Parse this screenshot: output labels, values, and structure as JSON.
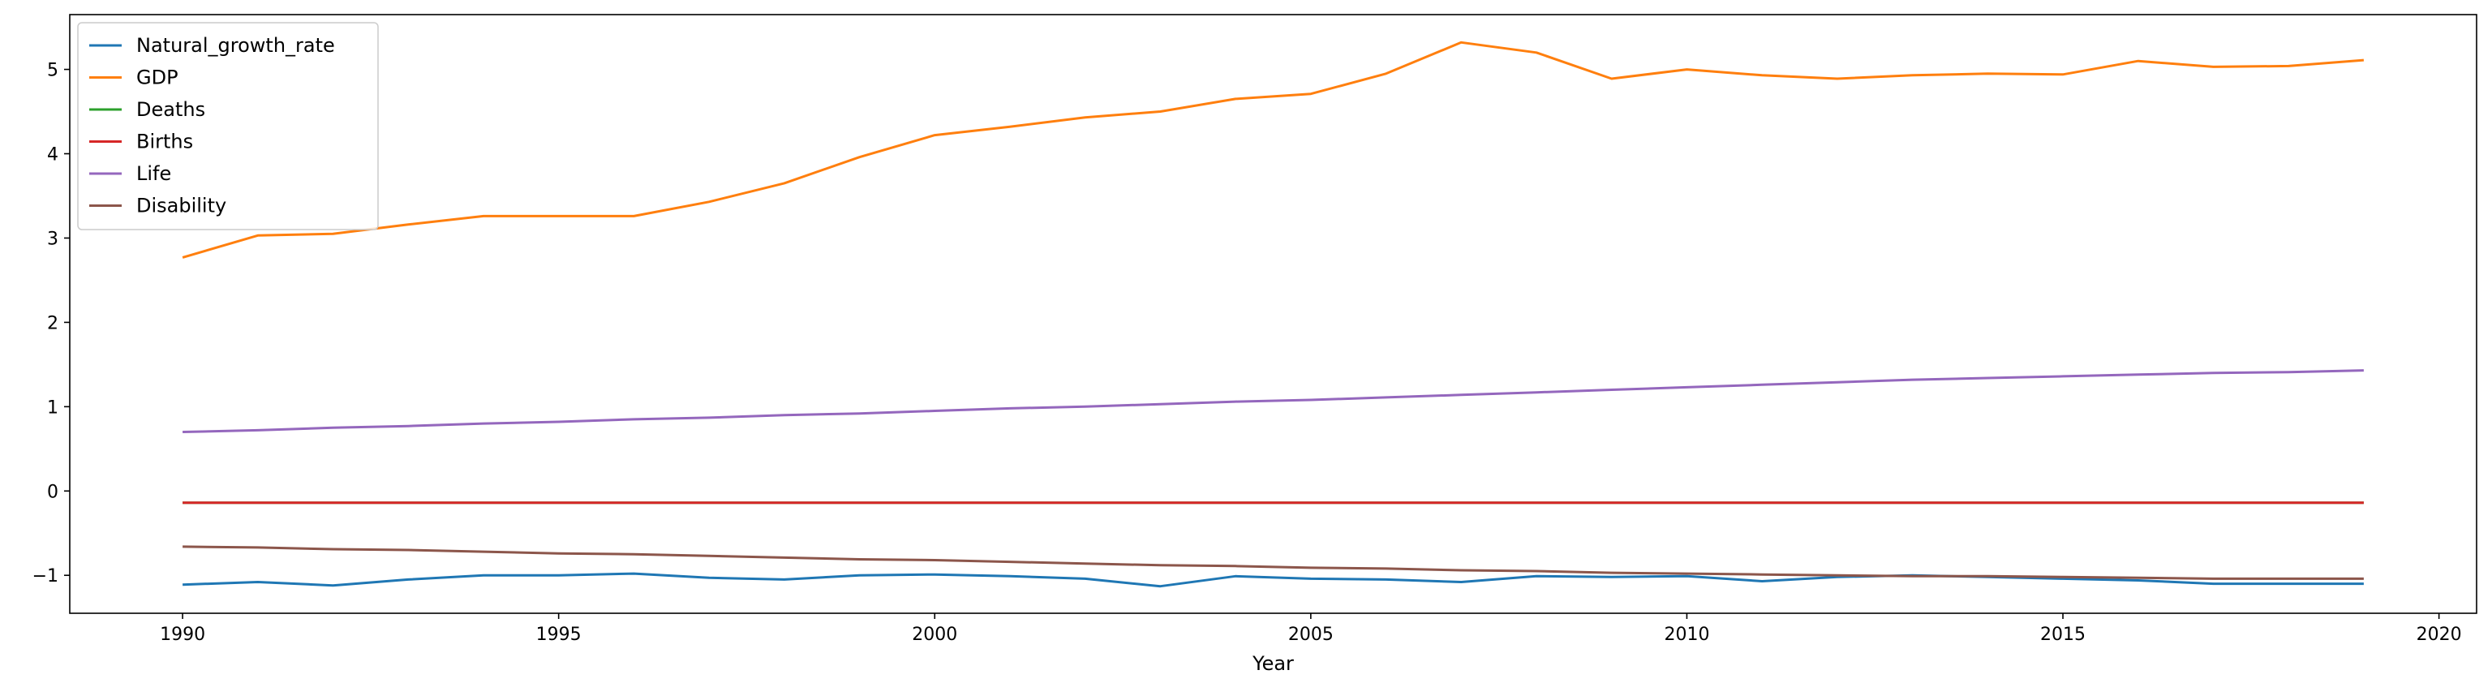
{
  "chart_data": {
    "type": "line",
    "title": "",
    "xlabel": "Year",
    "ylabel": "",
    "xlim": [
      1988.5,
      2020.5
    ],
    "ylim": [
      -1.45,
      5.65
    ],
    "xticks": [
      1990,
      1995,
      2000,
      2005,
      2010,
      2015,
      2020
    ],
    "yticks": [
      -1,
      0,
      1,
      2,
      3,
      4,
      5
    ],
    "ytick_labels": [
      "−1",
      "0",
      "1",
      "2",
      "3",
      "4",
      "5"
    ],
    "grid": false,
    "legend_position": "top-left",
    "x": [
      1990,
      1991,
      1992,
      1993,
      1994,
      1995,
      1996,
      1997,
      1998,
      1999,
      2000,
      2001,
      2002,
      2003,
      2004,
      2005,
      2006,
      2007,
      2008,
      2009,
      2010,
      2011,
      2012,
      2013,
      2014,
      2015,
      2016,
      2017,
      2018,
      2019
    ],
    "series": [
      {
        "name": "Natural_growth_rate",
        "color": "#1f77b4",
        "values": [
          -1.11,
          -1.08,
          -1.12,
          -1.05,
          -1.0,
          -1.0,
          -0.98,
          -1.03,
          -1.05,
          -1.0,
          -0.99,
          -1.01,
          -1.04,
          -1.13,
          -1.01,
          -1.04,
          -1.05,
          -1.08,
          -1.01,
          -1.02,
          -1.01,
          -1.07,
          -1.02,
          -1.0,
          -1.02,
          -1.04,
          -1.06,
          -1.1,
          -1.1,
          -1.1
        ]
      },
      {
        "name": "GDP",
        "color": "#ff7f0e",
        "values": [
          2.77,
          3.03,
          3.05,
          3.16,
          3.26,
          3.26,
          3.26,
          3.43,
          3.65,
          3.96,
          4.22,
          4.32,
          4.43,
          4.5,
          4.65,
          4.71,
          4.95,
          5.32,
          5.2,
          4.89,
          5.0,
          4.93,
          4.89,
          4.93,
          4.95,
          4.94,
          5.1,
          5.03,
          5.04,
          5.11
        ]
      },
      {
        "name": "Deaths",
        "color": "#2ca02c",
        "values": [
          -0.14,
          -0.14,
          -0.14,
          -0.14,
          -0.14,
          -0.14,
          -0.14,
          -0.14,
          -0.14,
          -0.14,
          -0.14,
          -0.14,
          -0.14,
          -0.14,
          -0.14,
          -0.14,
          -0.14,
          -0.14,
          -0.14,
          -0.14,
          -0.14,
          -0.14,
          -0.14,
          -0.14,
          -0.14,
          -0.14,
          -0.14,
          -0.14,
          -0.14,
          -0.14
        ]
      },
      {
        "name": "Births",
        "color": "#d62728",
        "values": [
          -0.14,
          -0.14,
          -0.14,
          -0.14,
          -0.14,
          -0.14,
          -0.14,
          -0.14,
          -0.14,
          -0.14,
          -0.14,
          -0.14,
          -0.14,
          -0.14,
          -0.14,
          -0.14,
          -0.14,
          -0.14,
          -0.14,
          -0.14,
          -0.14,
          -0.14,
          -0.14,
          -0.14,
          -0.14,
          -0.14,
          -0.14,
          -0.14,
          -0.14,
          -0.14
        ]
      },
      {
        "name": "Life",
        "color": "#9467bd",
        "values": [
          0.7,
          0.72,
          0.75,
          0.77,
          0.8,
          0.82,
          0.85,
          0.87,
          0.9,
          0.92,
          0.95,
          0.98,
          1.0,
          1.03,
          1.06,
          1.08,
          1.11,
          1.14,
          1.17,
          1.2,
          1.23,
          1.26,
          1.29,
          1.32,
          1.34,
          1.36,
          1.38,
          1.4,
          1.41,
          1.43
        ]
      },
      {
        "name": "Disability",
        "color": "#8c564b",
        "values": [
          -0.66,
          -0.67,
          -0.69,
          -0.7,
          -0.72,
          -0.74,
          -0.75,
          -0.77,
          -0.79,
          -0.81,
          -0.82,
          -0.84,
          -0.86,
          -0.88,
          -0.89,
          -0.91,
          -0.92,
          -0.94,
          -0.95,
          -0.97,
          -0.98,
          -0.99,
          -1.0,
          -1.01,
          -1.01,
          -1.02,
          -1.03,
          -1.04,
          -1.04,
          -1.04
        ]
      }
    ]
  }
}
